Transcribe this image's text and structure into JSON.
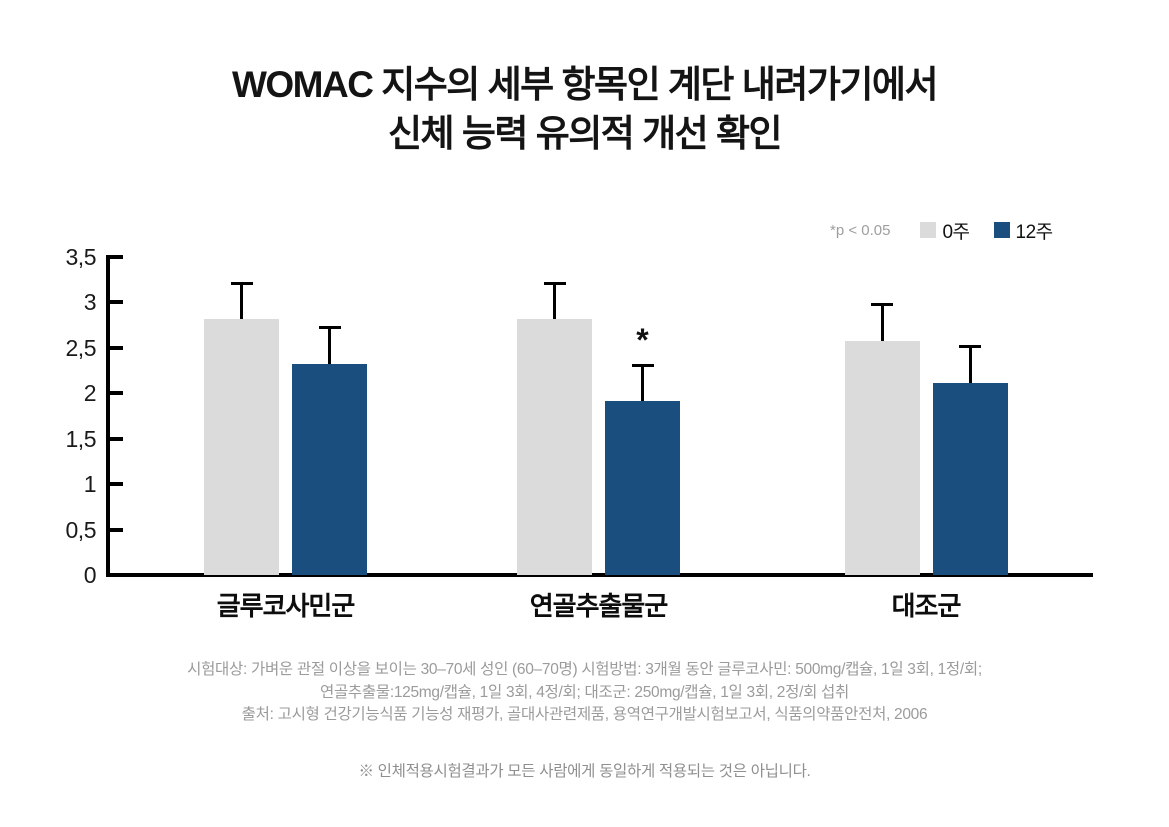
{
  "title": {
    "line1": "WOMAC 지수의 세부 항목인 계단 내려가기에서",
    "line2": "신체 능력 유의적 개선 확인"
  },
  "legend": {
    "pvalue_note": "*p < 0.05",
    "series": [
      {
        "label": "0주",
        "color": "#dbdbdb"
      },
      {
        "label": "12주",
        "color": "#1a4e7e"
      }
    ]
  },
  "chart_data": {
    "type": "bar",
    "categories": [
      "글루코사민군",
      "연골추출물군",
      "대조군"
    ],
    "series": [
      {
        "name": "0주",
        "color": "#dbdbdb",
        "values": [
          2.82,
          2.82,
          2.58
        ],
        "errors": [
          0.39,
          0.39,
          0.4
        ]
      },
      {
        "name": "12주",
        "color": "#1a4e7e",
        "values": [
          2.32,
          1.92,
          2.11
        ],
        "errors": [
          0.41,
          0.39,
          0.41
        ]
      }
    ],
    "ylim": [
      0,
      3.5
    ],
    "ytick_labels": [
      "0",
      "0,5",
      "1",
      "1,5",
      "2",
      "2,5",
      "3",
      "3,5"
    ],
    "grid": false,
    "legend_position": "top-right",
    "significance": {
      "category": "연골추출물군",
      "series": "12주",
      "marker": "*"
    }
  },
  "footnotes": [
    "시험대상: 가벼운 관절 이상을 보이는 30–70세 성인 (60–70명) 시험방법: 3개월 동안 글루코사민: 500mg/캡슐, 1일 3회, 1정/회;",
    "연골추출물:125mg/캡슐, 1일 3회, 4정/회; 대조군: 250mg/캡슐, 1일 3회, 2정/회 섭취",
    "출처: 고시형 건강기능식품 기능성 재평가, 골대사관련제품, 용역연구개발시험보고서, 식품의약품안전처, 2006"
  ],
  "disclaimer": "※ 인체적용시험결과가 모든 사람에게 동일하게 적용되는 것은 아닙니다."
}
